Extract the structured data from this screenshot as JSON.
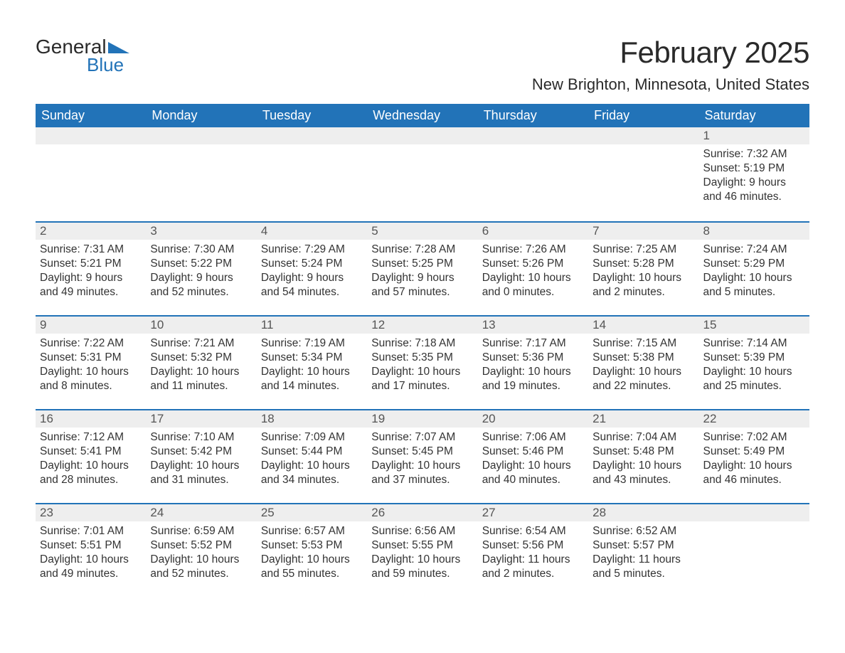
{
  "logo": {
    "word1": "General",
    "word2": "Blue",
    "accent_color": "#2273b8"
  },
  "title": "February 2025",
  "location": "New Brighton, Minnesota, United States",
  "header_bg": "#2273b8",
  "strip_bg": "#eeeeee",
  "weekdays": [
    "Sunday",
    "Monday",
    "Tuesday",
    "Wednesday",
    "Thursday",
    "Friday",
    "Saturday"
  ],
  "weeks": [
    [
      {
        "n": ""
      },
      {
        "n": ""
      },
      {
        "n": ""
      },
      {
        "n": ""
      },
      {
        "n": ""
      },
      {
        "n": ""
      },
      {
        "n": "1",
        "sr": "Sunrise: 7:32 AM",
        "ss": "Sunset: 5:19 PM",
        "d1": "Daylight: 9 hours",
        "d2": "and 46 minutes."
      }
    ],
    [
      {
        "n": "2",
        "sr": "Sunrise: 7:31 AM",
        "ss": "Sunset: 5:21 PM",
        "d1": "Daylight: 9 hours",
        "d2": "and 49 minutes."
      },
      {
        "n": "3",
        "sr": "Sunrise: 7:30 AM",
        "ss": "Sunset: 5:22 PM",
        "d1": "Daylight: 9 hours",
        "d2": "and 52 minutes."
      },
      {
        "n": "4",
        "sr": "Sunrise: 7:29 AM",
        "ss": "Sunset: 5:24 PM",
        "d1": "Daylight: 9 hours",
        "d2": "and 54 minutes."
      },
      {
        "n": "5",
        "sr": "Sunrise: 7:28 AM",
        "ss": "Sunset: 5:25 PM",
        "d1": "Daylight: 9 hours",
        "d2": "and 57 minutes."
      },
      {
        "n": "6",
        "sr": "Sunrise: 7:26 AM",
        "ss": "Sunset: 5:26 PM",
        "d1": "Daylight: 10 hours",
        "d2": "and 0 minutes."
      },
      {
        "n": "7",
        "sr": "Sunrise: 7:25 AM",
        "ss": "Sunset: 5:28 PM",
        "d1": "Daylight: 10 hours",
        "d2": "and 2 minutes."
      },
      {
        "n": "8",
        "sr": "Sunrise: 7:24 AM",
        "ss": "Sunset: 5:29 PM",
        "d1": "Daylight: 10 hours",
        "d2": "and 5 minutes."
      }
    ],
    [
      {
        "n": "9",
        "sr": "Sunrise: 7:22 AM",
        "ss": "Sunset: 5:31 PM",
        "d1": "Daylight: 10 hours",
        "d2": "and 8 minutes."
      },
      {
        "n": "10",
        "sr": "Sunrise: 7:21 AM",
        "ss": "Sunset: 5:32 PM",
        "d1": "Daylight: 10 hours",
        "d2": "and 11 minutes."
      },
      {
        "n": "11",
        "sr": "Sunrise: 7:19 AM",
        "ss": "Sunset: 5:34 PM",
        "d1": "Daylight: 10 hours",
        "d2": "and 14 minutes."
      },
      {
        "n": "12",
        "sr": "Sunrise: 7:18 AM",
        "ss": "Sunset: 5:35 PM",
        "d1": "Daylight: 10 hours",
        "d2": "and 17 minutes."
      },
      {
        "n": "13",
        "sr": "Sunrise: 7:17 AM",
        "ss": "Sunset: 5:36 PM",
        "d1": "Daylight: 10 hours",
        "d2": "and 19 minutes."
      },
      {
        "n": "14",
        "sr": "Sunrise: 7:15 AM",
        "ss": "Sunset: 5:38 PM",
        "d1": "Daylight: 10 hours",
        "d2": "and 22 minutes."
      },
      {
        "n": "15",
        "sr": "Sunrise: 7:14 AM",
        "ss": "Sunset: 5:39 PM",
        "d1": "Daylight: 10 hours",
        "d2": "and 25 minutes."
      }
    ],
    [
      {
        "n": "16",
        "sr": "Sunrise: 7:12 AM",
        "ss": "Sunset: 5:41 PM",
        "d1": "Daylight: 10 hours",
        "d2": "and 28 minutes."
      },
      {
        "n": "17",
        "sr": "Sunrise: 7:10 AM",
        "ss": "Sunset: 5:42 PM",
        "d1": "Daylight: 10 hours",
        "d2": "and 31 minutes."
      },
      {
        "n": "18",
        "sr": "Sunrise: 7:09 AM",
        "ss": "Sunset: 5:44 PM",
        "d1": "Daylight: 10 hours",
        "d2": "and 34 minutes."
      },
      {
        "n": "19",
        "sr": "Sunrise: 7:07 AM",
        "ss": "Sunset: 5:45 PM",
        "d1": "Daylight: 10 hours",
        "d2": "and 37 minutes."
      },
      {
        "n": "20",
        "sr": "Sunrise: 7:06 AM",
        "ss": "Sunset: 5:46 PM",
        "d1": "Daylight: 10 hours",
        "d2": "and 40 minutes."
      },
      {
        "n": "21",
        "sr": "Sunrise: 7:04 AM",
        "ss": "Sunset: 5:48 PM",
        "d1": "Daylight: 10 hours",
        "d2": "and 43 minutes."
      },
      {
        "n": "22",
        "sr": "Sunrise: 7:02 AM",
        "ss": "Sunset: 5:49 PM",
        "d1": "Daylight: 10 hours",
        "d2": "and 46 minutes."
      }
    ],
    [
      {
        "n": "23",
        "sr": "Sunrise: 7:01 AM",
        "ss": "Sunset: 5:51 PM",
        "d1": "Daylight: 10 hours",
        "d2": "and 49 minutes."
      },
      {
        "n": "24",
        "sr": "Sunrise: 6:59 AM",
        "ss": "Sunset: 5:52 PM",
        "d1": "Daylight: 10 hours",
        "d2": "and 52 minutes."
      },
      {
        "n": "25",
        "sr": "Sunrise: 6:57 AM",
        "ss": "Sunset: 5:53 PM",
        "d1": "Daylight: 10 hours",
        "d2": "and 55 minutes."
      },
      {
        "n": "26",
        "sr": "Sunrise: 6:56 AM",
        "ss": "Sunset: 5:55 PM",
        "d1": "Daylight: 10 hours",
        "d2": "and 59 minutes."
      },
      {
        "n": "27",
        "sr": "Sunrise: 6:54 AM",
        "ss": "Sunset: 5:56 PM",
        "d1": "Daylight: 11 hours",
        "d2": "and 2 minutes."
      },
      {
        "n": "28",
        "sr": "Sunrise: 6:52 AM",
        "ss": "Sunset: 5:57 PM",
        "d1": "Daylight: 11 hours",
        "d2": "and 5 minutes."
      },
      {
        "n": ""
      }
    ]
  ]
}
